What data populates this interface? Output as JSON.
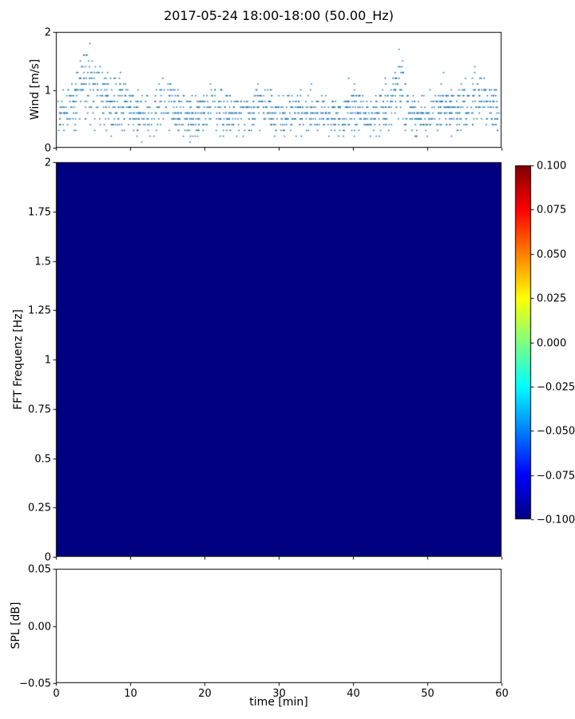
{
  "title": "2017-05-24 18:00-18:00 (50.00_Hz)",
  "background": "#ffffff",
  "axis_color": "#000000",
  "chart_data": [
    {
      "type": "scatter",
      "id": "wind",
      "ylabel": "Wind [m/s]",
      "xlim": [
        0,
        60
      ],
      "ylim": [
        0,
        2
      ],
      "ytick_values": [
        0,
        1,
        2
      ],
      "ytick_labels": [
        "0",
        "1",
        "2"
      ],
      "marker_color": "#1f77b4",
      "marker_radius": 0.8,
      "note": "dense cloud of discrete wind-speed samples (quantized to 0.1 m/s), bulk between 0.1 and 1.0 m/s, gust bursts up to 2.0 m/s near t=4-6 min and ~1.7 m/s near t=46 min; points regenerated procedurally from generator params",
      "generator": {
        "seed": 20170524,
        "n": 1500,
        "base_min": 0.1,
        "tri_scale": 0.9,
        "quantize": 0.1,
        "bursts": [
          {
            "center": 4.5,
            "width": 2.6,
            "amp": 1.15
          },
          {
            "center": 9.0,
            "width": 1.2,
            "amp": 0.5
          },
          {
            "center": 15.0,
            "width": 1.5,
            "amp": 0.45
          },
          {
            "center": 21.0,
            "width": 1.2,
            "amp": 0.4
          },
          {
            "center": 28.0,
            "width": 1.5,
            "amp": 0.45
          },
          {
            "center": 34.0,
            "width": 1.2,
            "amp": 0.35
          },
          {
            "center": 40.0,
            "width": 1.2,
            "amp": 0.35
          },
          {
            "center": 46.0,
            "width": 1.6,
            "amp": 0.9
          },
          {
            "center": 52.0,
            "width": 1.2,
            "amp": 0.4
          },
          {
            "center": 56.5,
            "width": 2.2,
            "amp": 0.6
          }
        ]
      }
    },
    {
      "type": "heatmap",
      "id": "spectrogram",
      "ylabel": "FFT Frequenz [Hz]",
      "xlim": [
        0,
        60
      ],
      "ylim": [
        0,
        2
      ],
      "ytick_values": [
        0,
        0.25,
        0.5,
        0.75,
        1,
        1.25,
        1.5,
        1.75,
        2
      ],
      "ytick_labels": [
        "0",
        "0.25",
        "0.5",
        "0.75",
        "1",
        "1.25",
        "1.5",
        "1.75",
        "2"
      ],
      "uniform_value": -0.1,
      "fill_color": "#000080",
      "colorbar": {
        "cmap": "jet",
        "vmin": -0.1,
        "vmax": 0.1,
        "tick_values": [
          0.1,
          0.075,
          0.05,
          0.025,
          0,
          -0.025,
          -0.05,
          -0.075,
          -0.1
        ],
        "tick_labels": [
          "0.100",
          "0.075",
          "0.050",
          "0.025",
          "0.000",
          "−0.025",
          "−0.050",
          "−0.075",
          "−0.100"
        ],
        "gradient_stops": [
          {
            "pos": 0.0,
            "color": "#000080"
          },
          {
            "pos": 0.125,
            "color": "#0000ff"
          },
          {
            "pos": 0.375,
            "color": "#00ffff"
          },
          {
            "pos": 0.625,
            "color": "#ffff00"
          },
          {
            "pos": 0.875,
            "color": "#ff0000"
          },
          {
            "pos": 1.0,
            "color": "#800000"
          }
        ]
      }
    },
    {
      "type": "line",
      "id": "spl",
      "ylabel": "SPL [dB]",
      "xlabel": "time [min]",
      "xlim": [
        0,
        60
      ],
      "ylim": [
        -0.05,
        0.05
      ],
      "ytick_values": [
        0.05,
        0,
        -0.05
      ],
      "ytick_labels": [
        "0.05",
        "0.00",
        "−0.05"
      ],
      "xtick_values": [
        0,
        10,
        20,
        30,
        40,
        50,
        60
      ],
      "xtick_labels": [
        "0",
        "10",
        "20",
        "30",
        "40",
        "50",
        "60"
      ],
      "values": []
    }
  ]
}
